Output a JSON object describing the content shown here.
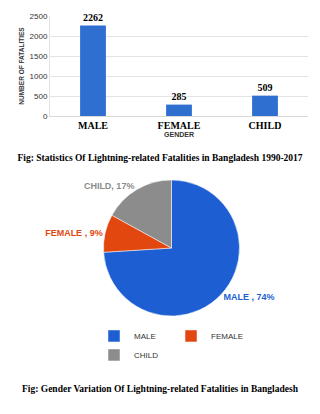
{
  "chart_data": [
    {
      "type": "bar",
      "title": "Fig: Statistics Of Lightning-related Fatalities in Bangladesh 1990-2017",
      "x_label": "GENDER",
      "y_label": "NUMBER OF FATALITIES",
      "categories": [
        "MALE",
        "FEMALE",
        "CHILD"
      ],
      "values": [
        2262,
        285,
        509
      ],
      "color": "#2f6fd0",
      "ylim": [
        0,
        2500
      ],
      "yticks": [
        0,
        500,
        1000,
        1500,
        2000,
        2500
      ],
      "grid": true,
      "data_labels": true
    },
    {
      "type": "pie",
      "title": "Fig: Gender Variation Of Lightning-related Fatalities in Bangladesh",
      "categories": [
        "MALE",
        "FEMALE",
        "CHILD"
      ],
      "values": [
        74,
        9,
        17
      ],
      "value_labels": [
        "MALE , 74%",
        "FEMALE , 9%",
        "CHILD, 17%"
      ],
      "colors": [
        "#1d5fd3",
        "#e2470f",
        "#8c8c8c"
      ],
      "legend": "bottom",
      "data_labels": true
    }
  ]
}
